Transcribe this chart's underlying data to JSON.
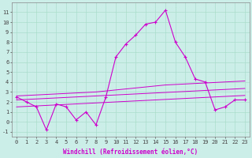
{
  "background_color": "#cceee8",
  "grid_color": "#aaddcc",
  "line_color": "#cc00cc",
  "x_data": [
    0,
    1,
    2,
    3,
    4,
    5,
    6,
    7,
    8,
    9,
    10,
    11,
    12,
    13,
    14,
    15,
    16,
    17,
    18,
    19,
    20,
    21,
    22,
    23
  ],
  "y_zigzag": [
    2.5,
    2.0,
    1.5,
    -0.8,
    1.8,
    1.5,
    0.2,
    1.0,
    -0.3,
    2.5,
    6.5,
    7.8,
    8.7,
    9.8,
    10.0,
    11.2,
    8.0,
    6.5,
    4.3,
    4.0,
    1.2,
    1.5,
    2.2,
    2.2
  ],
  "y_upper": [
    2.6,
    2.65,
    2.7,
    2.75,
    2.8,
    2.85,
    2.9,
    2.95,
    3.0,
    3.1,
    3.2,
    3.3,
    3.4,
    3.5,
    3.6,
    3.7,
    3.75,
    3.8,
    3.85,
    3.9,
    3.95,
    4.0,
    4.05,
    4.1
  ],
  "y_mid": [
    2.2,
    2.25,
    2.3,
    2.35,
    2.4,
    2.45,
    2.5,
    2.55,
    2.6,
    2.65,
    2.7,
    2.75,
    2.8,
    2.85,
    2.9,
    2.95,
    3.0,
    3.05,
    3.1,
    3.15,
    3.2,
    3.25,
    3.3,
    3.35
  ],
  "y_lower": [
    1.5,
    1.55,
    1.6,
    1.65,
    1.7,
    1.75,
    1.8,
    1.85,
    1.9,
    1.95,
    2.0,
    2.05,
    2.1,
    2.15,
    2.2,
    2.25,
    2.3,
    2.35,
    2.4,
    2.45,
    2.5,
    2.55,
    2.6,
    2.65
  ],
  "xlim": [
    -0.5,
    23.5
  ],
  "ylim": [
    -1.5,
    12.0
  ],
  "yticks": [
    -1,
    0,
    1,
    2,
    3,
    4,
    5,
    6,
    7,
    8,
    9,
    10,
    11
  ],
  "xticks": [
    0,
    1,
    2,
    3,
    4,
    5,
    6,
    7,
    8,
    9,
    10,
    11,
    12,
    13,
    14,
    15,
    16,
    17,
    18,
    19,
    20,
    21,
    22,
    23
  ],
  "xlabel": "Windchill (Refroidissement éolien,°C)",
  "xlabel_fontsize": 5.5,
  "tick_fontsize": 5.0,
  "figwidth": 3.2,
  "figheight": 2.0,
  "dpi": 100
}
